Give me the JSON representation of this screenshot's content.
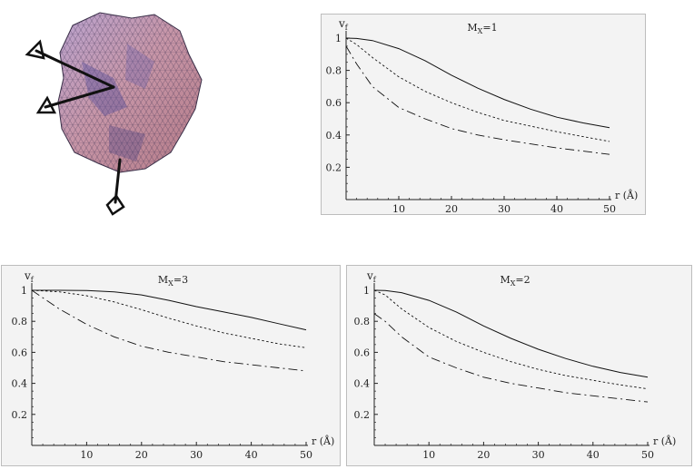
{
  "molecule": {
    "icon": "protein-surface-with-dipole-arrows-icon"
  },
  "chart_data": [
    {
      "type": "line",
      "panel_label": "M_X = 1",
      "label_main": "M",
      "label_sub": "X",
      "label_value": "=1",
      "ylabel_main": "v",
      "ylabel_sub": "f",
      "xlabel": "r (Å)",
      "xlim": [
        0,
        50
      ],
      "ylim": [
        0,
        1
      ],
      "xticks": [
        10,
        20,
        30,
        40,
        50
      ],
      "yticks": [
        0.2,
        0.4,
        0.6,
        0.8,
        1
      ],
      "ytick_labels": [
        "0.2",
        "0.4",
        "0.6",
        "0.8",
        "1"
      ],
      "x": [
        0,
        2,
        5,
        10,
        15,
        20,
        25,
        30,
        35,
        40,
        45,
        50
      ],
      "series": [
        {
          "style": "solid",
          "values": [
            1.0,
            0.998,
            0.985,
            0.935,
            0.86,
            0.77,
            0.69,
            0.62,
            0.56,
            0.51,
            0.475,
            0.445
          ]
        },
        {
          "style": "dotted",
          "values": [
            1.0,
            0.96,
            0.88,
            0.76,
            0.67,
            0.6,
            0.54,
            0.49,
            0.455,
            0.42,
            0.39,
            0.36
          ]
        },
        {
          "style": "dashdot",
          "values": [
            0.95,
            0.84,
            0.7,
            0.57,
            0.5,
            0.44,
            0.4,
            0.37,
            0.345,
            0.32,
            0.3,
            0.28
          ]
        }
      ]
    },
    {
      "type": "line",
      "panel_label": "M_X = 3",
      "label_main": "M",
      "label_sub": "X",
      "label_value": "=3",
      "ylabel_main": "v",
      "ylabel_sub": "f",
      "xlabel": "r (Å)",
      "xlim": [
        0,
        50
      ],
      "ylim": [
        0,
        1
      ],
      "xticks": [
        10,
        20,
        30,
        40,
        50
      ],
      "yticks": [
        0.2,
        0.4,
        0.6,
        0.8,
        1
      ],
      "ytick_labels": [
        "0.2",
        "0.4",
        "0.6",
        "0.8",
        "1"
      ],
      "x": [
        0,
        5,
        10,
        15,
        20,
        25,
        30,
        35,
        40,
        45,
        50
      ],
      "series": [
        {
          "style": "solid",
          "values": [
            1.0,
            1.0,
            0.998,
            0.99,
            0.97,
            0.935,
            0.895,
            0.86,
            0.825,
            0.785,
            0.745
          ]
        },
        {
          "style": "dotted",
          "values": [
            1.0,
            0.99,
            0.965,
            0.925,
            0.875,
            0.82,
            0.77,
            0.725,
            0.69,
            0.655,
            0.63
          ]
        },
        {
          "style": "dashdot",
          "values": [
            1.0,
            0.88,
            0.78,
            0.7,
            0.64,
            0.6,
            0.57,
            0.54,
            0.52,
            0.5,
            0.48
          ]
        }
      ]
    },
    {
      "type": "line",
      "panel_label": "M_X = 2",
      "label_main": "M",
      "label_sub": "X",
      "label_value": "=2",
      "ylabel_main": "v",
      "ylabel_sub": "f",
      "xlabel": "r (Å)",
      "xlim": [
        0,
        50
      ],
      "ylim": [
        0,
        1
      ],
      "xticks": [
        10,
        20,
        30,
        40,
        50
      ],
      "yticks": [
        0.2,
        0.4,
        0.6,
        0.8,
        1
      ],
      "ytick_labels": [
        "0.2",
        "0.4",
        "0.6",
        "0.8",
        "1"
      ],
      "x": [
        0,
        2,
        5,
        10,
        15,
        20,
        25,
        30,
        35,
        40,
        45,
        50
      ],
      "series": [
        {
          "style": "solid",
          "values": [
            1.0,
            0.998,
            0.985,
            0.935,
            0.86,
            0.77,
            0.69,
            0.62,
            0.56,
            0.51,
            0.47,
            0.44
          ]
        },
        {
          "style": "dotted",
          "values": [
            1.0,
            0.97,
            0.88,
            0.76,
            0.67,
            0.6,
            0.54,
            0.49,
            0.45,
            0.42,
            0.39,
            0.365
          ]
        },
        {
          "style": "dashdot",
          "values": [
            0.85,
            0.8,
            0.7,
            0.57,
            0.5,
            0.44,
            0.4,
            0.37,
            0.34,
            0.32,
            0.3,
            0.28
          ]
        }
      ]
    }
  ]
}
